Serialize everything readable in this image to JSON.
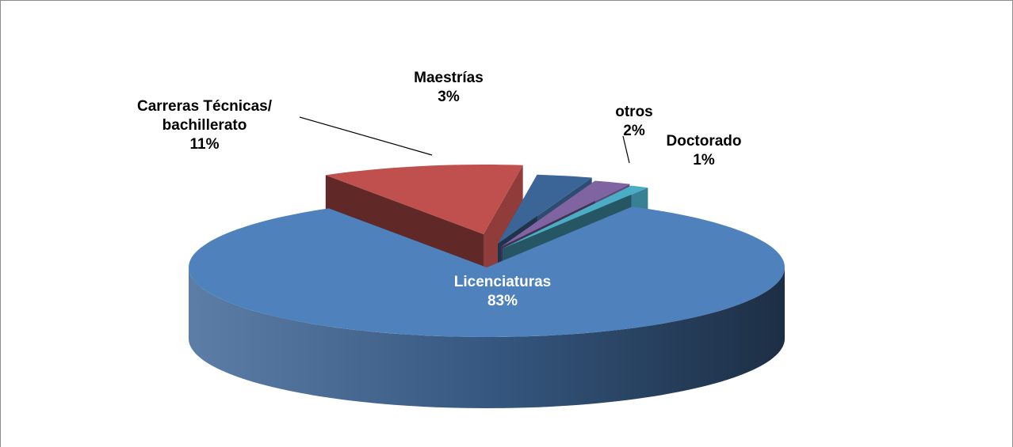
{
  "chart_data": {
    "type": "pie3d",
    "categories": [
      "Licenciaturas",
      "Carreras Técnicas/\nbachillerato",
      "Maestrías",
      "otros",
      "Doctorado"
    ],
    "values": [
      83,
      11,
      3,
      2,
      1
    ],
    "value_labels": [
      "83%",
      "11%",
      "3%",
      "2%",
      "1%"
    ],
    "colors": [
      "#4f81bd",
      "#c0504d",
      "#3c6597",
      "#8064a2",
      "#4bacc6"
    ]
  }
}
